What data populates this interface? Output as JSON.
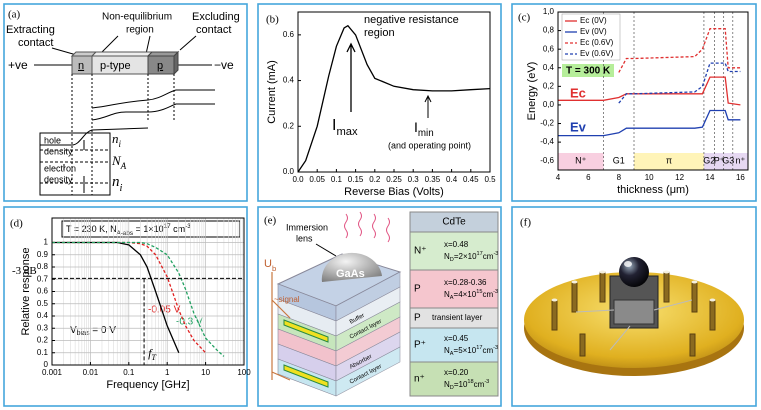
{
  "panel_labels": [
    "(a)",
    "(b)",
    "(c)",
    "(d)",
    "(e)",
    "(f)"
  ],
  "panel_a": {
    "extracting_contact": [
      "Extracting",
      "contact"
    ],
    "non_equilibrium_region": [
      "Non-equilibrium",
      "region"
    ],
    "excluding_contact": [
      "Excluding",
      "contact"
    ],
    "plus": "+ve",
    "minus": "−ve",
    "n": "n",
    "p_type": "p-type",
    "p": "p",
    "hole_density": [
      "hole",
      "density"
    ],
    "n_i_top": [
      {
        "t": "n"
      },
      {
        "t": "i",
        "sub": true
      }
    ],
    "N_A": [
      {
        "t": "N"
      },
      {
        "t": "A",
        "sub": true
      }
    ],
    "electron_density": [
      "electron",
      "density"
    ],
    "n_i_bottom": [
      {
        "t": "n"
      },
      {
        "t": "i",
        "sub": true
      }
    ]
  },
  "chart_data": [
    {
      "type": "line",
      "x": [
        0,
        0.02,
        0.05,
        0.08,
        0.1,
        0.12,
        0.13,
        0.15,
        0.18,
        0.2,
        0.25,
        0.3,
        0.35,
        0.4,
        0.45,
        0.5
      ],
      "values": [
        0,
        0.05,
        0.2,
        0.42,
        0.55,
        0.63,
        0.64,
        0.6,
        0.47,
        0.41,
        0.375,
        0.36,
        0.355,
        0.355,
        0.36,
        0.365
      ],
      "color": "#000000",
      "xlim": [
        0,
        0.5
      ],
      "ylim": [
        0,
        0.7
      ],
      "xticks": [
        {
          "value": 0,
          "label": "0.0"
        },
        0.05,
        0.1,
        0.15,
        0.2,
        0.25,
        0.3,
        0.35,
        0.4,
        0.45,
        0.5
      ],
      "yticks": [
        {
          "value": 0,
          "label": "0.0"
        },
        0.2,
        0.4,
        0.6
      ],
      "xlabel": "Reverse Bias (Volts)",
      "ylabel": "Current (mA)",
      "annotations": {
        "region": [
          "negative resistance",
          "region"
        ],
        "imax": [
          {
            "t": "I"
          },
          {
            "t": "max",
            "sub": true
          }
        ],
        "imin": [
          {
            "t": "I"
          },
          {
            "t": "min",
            "sub": true
          }
        ],
        "operating": "(and operating point)"
      }
    },
    {
      "type": "line",
      "x": [
        4,
        7,
        8,
        8.5,
        9,
        13,
        13.5,
        14,
        14.5,
        15,
        15.2,
        16
      ],
      "series": [
        {
          "name": "Ec (0V)",
          "color": "#e03030",
          "dash": false,
          "values": [
            0.05,
            0.05,
            0.08,
            0.12,
            0.12,
            0.12,
            0.12,
            0.3,
            0.3,
            0.3,
            0.02,
            0
          ]
        },
        {
          "name": "Ev (0V)",
          "color": "#2040b0",
          "dash": false,
          "values": [
            -0.33,
            -0.33,
            -0.3,
            -0.25,
            -0.25,
            -0.25,
            -0.24,
            -0.06,
            -0.06,
            -0.06,
            -0.16,
            -0.16
          ]
        },
        {
          "name": "Ec (0.6V)",
          "color": "#e03030",
          "dash": true,
          "values": [
            null,
            null,
            0.35,
            0.5,
            0.5,
            0.52,
            0.6,
            0.82,
            0.82,
            0.82,
            0.4,
            0.4
          ]
        },
        {
          "name": "Ev (0.6V)",
          "color": "#2040b0",
          "dash": true,
          "values": [
            null,
            null,
            0.02,
            0.12,
            0.12,
            0.14,
            0.2,
            0.45,
            0.45,
            0.45,
            0.36,
            0.36
          ]
        }
      ],
      "xlim": [
        4,
        16.5
      ],
      "ylim": [
        -0.7,
        1.0
      ],
      "xticks": [
        4,
        6,
        8,
        10,
        12,
        14,
        16
      ],
      "yticks": [
        {
          "value": -0.6,
          "label": "-0,6"
        },
        {
          "value": -0.4,
          "label": "-0,4"
        },
        {
          "value": -0.2,
          "label": "-0,2"
        },
        {
          "value": 0,
          "label": "0,0"
        },
        {
          "value": 0.2,
          "label": "0,2"
        },
        {
          "value": 0.4,
          "label": "0,4"
        },
        {
          "value": 0.6,
          "label": "0,6"
        },
        {
          "value": 0.8,
          "label": "0,8"
        },
        {
          "value": 1.0,
          "label": "1,0"
        }
      ],
      "xlabel": "thickness (μm)",
      "ylabel": "Energy (eV)",
      "legend": "upper left",
      "boundaries": [
        7,
        9,
        13.6,
        14.3,
        14.9,
        15.5
      ],
      "regions": [
        {
          "label": "N⁺",
          "color": "#f8cfe0"
        },
        {
          "label": "G1",
          "color": "#ffffff"
        },
        {
          "label": "π",
          "color": "#fff4b8"
        },
        {
          "label": "G2",
          "color": "#e6d8f2"
        },
        {
          "label": "P⁺",
          "color": "#e6d8f2"
        },
        {
          "label": "G3",
          "color": "#e6d8f2"
        },
        {
          "label": "n⁺",
          "color": "#e6d8f2"
        }
      ],
      "annotations": {
        "temp": "T = 300 K",
        "ec": "Ec",
        "ev": "Ev"
      }
    },
    {
      "type": "line",
      "xscale": "log",
      "grid": true,
      "x": [
        0.001,
        0.01,
        0.05,
        0.1,
        0.2,
        0.3,
        0.5,
        1,
        2,
        3,
        5,
        10,
        20,
        30
      ],
      "series": [
        {
          "color": "#000000",
          "dash": false,
          "values": [
            1,
            1,
            1,
            0.98,
            0.9,
            0.8,
            0.6,
            0.32,
            0.1,
            null,
            null,
            null,
            null,
            null
          ]
        },
        {
          "color": "#e02020",
          "dash": true,
          "values": [
            1,
            1,
            1,
            1,
            0.99,
            0.97,
            0.9,
            0.72,
            0.45,
            0.32,
            0.2,
            0.1,
            null,
            null
          ]
        },
        {
          "color": "#20a060",
          "dash": true,
          "values": [
            1,
            1,
            1,
            1,
            1,
            0.99,
            0.96,
            0.9,
            0.75,
            0.62,
            0.42,
            0.22,
            0.12,
            0.07
          ]
        }
      ],
      "xlim": [
        0.001,
        100
      ],
      "ylim": [
        0,
        1.2
      ],
      "xticks": [
        0.001,
        0.01,
        0.1,
        1,
        10,
        100
      ],
      "yticks": [
        0,
        0.1,
        0.2,
        0.3,
        0.4,
        0.5,
        0.6,
        0.7,
        0.8,
        0.9,
        1
      ],
      "xlabel": "Frequency [GHz]",
      "ylabel": "Relative response",
      "annotations": {
        "conditions": [
          {
            "t": "T = 230 K, N"
          },
          {
            "t": "A-abs",
            "sub": true
          },
          {
            "t": " = 1×10"
          },
          {
            "t": "17",
            "sup": true
          },
          {
            "t": " cm"
          },
          {
            "t": "-3",
            "sup": true
          }
        ],
        "v0": [
          {
            "t": "V"
          },
          {
            "t": "bias",
            "sub": true
          },
          {
            "t": " = 0 V"
          }
        ],
        "v005": "-0.05 V",
        "v03": "-0.3 V"
      },
      "minus3db": {
        "value": 0.707,
        "label": "-3 dB"
      },
      "f_T": {
        "value": 0.25,
        "label": [
          {
            "t": "f"
          },
          {
            "t": "T",
            "sub": true
          }
        ]
      }
    }
  ],
  "panel_e": {
    "immersion_lens": [
      "Immersion",
      "lens"
    ],
    "gaas": "GaAs",
    "ub": [
      {
        "t": "U"
      },
      {
        "t": "b",
        "sub": true
      }
    ],
    "signal": "~signal",
    "layers": [
      "Buffer",
      "Contact layer",
      "Absorber",
      "Contact layer"
    ],
    "table_header": "CdTe",
    "rows": [
      {
        "label": "N⁺",
        "lines": [
          [
            {
              "t": "x=0.48"
            }
          ],
          [
            {
              "t": "N"
            },
            {
              "t": "D",
              "sub": true
            },
            {
              "t": "=2×10"
            },
            {
              "t": "17",
              "sup": true
            },
            {
              "t": "cm"
            },
            {
              "t": "-3",
              "sup": true
            }
          ]
        ]
      },
      {
        "label": "P",
        "lines": [
          [
            {
              "t": "x=0.28-0.36"
            }
          ],
          [
            {
              "t": "N"
            },
            {
              "t": "A",
              "sub": true
            },
            {
              "t": "=4×10"
            },
            {
              "t": "15",
              "sup": true
            },
            {
              "t": "cm"
            },
            {
              "t": "-3",
              "sup": true
            }
          ]
        ]
      },
      {
        "label": "P",
        "lines": [
          [
            {
              "t": "transient layer"
            }
          ]
        ]
      },
      {
        "label": "P⁺",
        "lines": [
          [
            {
              "t": "x=0.45"
            }
          ],
          [
            {
              "t": "N"
            },
            {
              "t": "A",
              "sub": true
            },
            {
              "t": "=5×10"
            },
            {
              "t": "17",
              "sup": true
            },
            {
              "t": "cm"
            },
            {
              "t": "-3",
              "sup": true
            }
          ]
        ]
      },
      {
        "label": "n⁺",
        "lines": [
          [
            {
              "t": "x=0.20"
            }
          ],
          [
            {
              "t": "N"
            },
            {
              "t": "D",
              "sub": true
            },
            {
              "t": "=10"
            },
            {
              "t": "18",
              "sup": true
            },
            {
              "t": "cm"
            },
            {
              "t": "-3",
              "sup": true
            }
          ]
        ]
      }
    ]
  }
}
